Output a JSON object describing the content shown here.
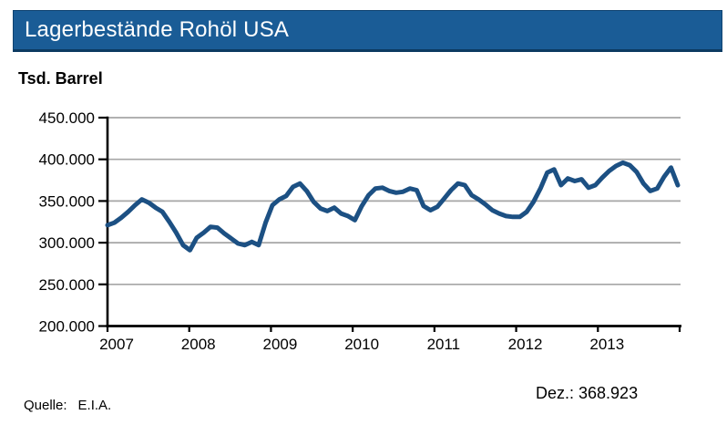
{
  "header": {
    "title": "Lagerbestände Rohöl USA"
  },
  "unit_label": "Tsd. Barrel",
  "annotation_label": "Dez.: 368.923",
  "source": {
    "prefix": "Quelle:",
    "value": "E.I.A."
  },
  "colors": {
    "header_bg": "#1a5c96",
    "header_text": "#ffffff",
    "line": "#1c5083",
    "grid": "#a6a6a6",
    "axis": "#000000"
  },
  "chart_data": {
    "type": "line",
    "title": "Lagerbestände Rohöl USA",
    "ylabel": "Tsd. Barrel",
    "xlabel": "",
    "ylim": [
      200000,
      450000
    ],
    "ytick_interval": 50000,
    "ytick_labels": [
      "450.000",
      "400.000",
      "350.000",
      "300.000",
      "250.000",
      "200.000"
    ],
    "xtick_labels": [
      "2007",
      "2008",
      "2009",
      "2010",
      "2011",
      "2012",
      "2013"
    ],
    "grid": "horizontal",
    "legend": "none",
    "frequency": "monthly",
    "x_start": "2007-01",
    "x_end": "2013-12",
    "series": [
      {
        "name": "Lagerbestände Rohöl USA (Tsd. Barrel)",
        "values": [
          321000,
          324000,
          330000,
          337000,
          345000,
          352000,
          348000,
          342000,
          337000,
          325000,
          312000,
          297000,
          291000,
          306000,
          312000,
          319000,
          318000,
          311000,
          305000,
          299000,
          297000,
          301000,
          297000,
          324000,
          345000,
          352000,
          356000,
          367000,
          371000,
          362000,
          349000,
          341000,
          338000,
          342000,
          335000,
          332000,
          327000,
          344000,
          357000,
          365000,
          366000,
          362000,
          360000,
          361000,
          365000,
          363000,
          344000,
          339000,
          343000,
          353000,
          363000,
          371000,
          369000,
          357000,
          352000,
          346000,
          339000,
          335000,
          332000,
          331000,
          331000,
          337000,
          349000,
          365000,
          384000,
          388000,
          369000,
          377000,
          374000,
          376000,
          366000,
          369000,
          378000,
          386000,
          392000,
          396000,
          393000,
          385000,
          371000,
          362000,
          365000,
          379000,
          390000,
          368923
        ]
      }
    ],
    "annotation": {
      "text": "Dez.: 368.923",
      "value": 368923
    },
    "source": "E.I.A."
  }
}
